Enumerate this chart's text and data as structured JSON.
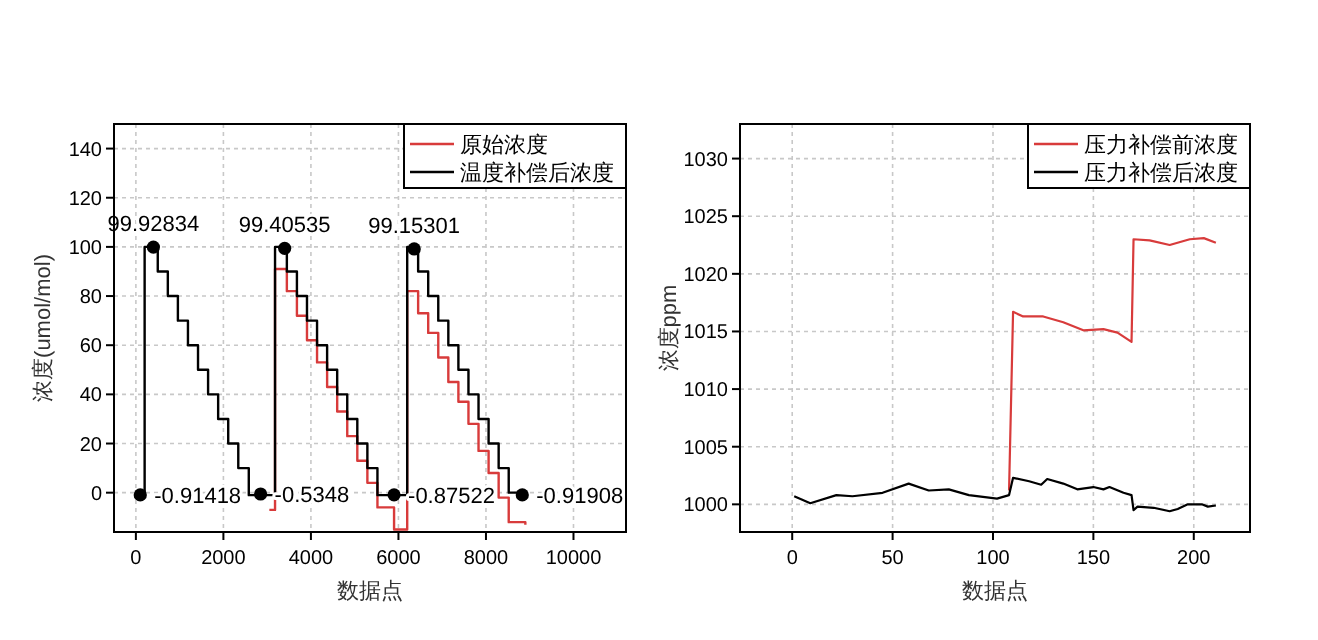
{
  "chart_data": [
    {
      "type": "step",
      "xlabel": "数据点",
      "ylabel": "浓度(umol/mol)",
      "xlim": [
        -500,
        11200
      ],
      "ylim": [
        -16,
        150
      ],
      "xticks": [
        0,
        2000,
        4000,
        6000,
        8000,
        10000
      ],
      "yticks": [
        0,
        20,
        40,
        60,
        80,
        100,
        120,
        140
      ],
      "grid": true,
      "legend": "top right",
      "series": [
        {
          "name": "原始浓度",
          "color": "#d83b3b",
          "x": [
            3050,
            3180,
            3450,
            3680,
            3910,
            4140,
            4370,
            4600,
            4830,
            5060,
            5290,
            5520,
            5900,
            6200,
            6450,
            6680,
            6910,
            7140,
            7370,
            7600,
            7830,
            8060,
            8290,
            8520,
            8900
          ],
          "values": [
            -7,
            91,
            82,
            72,
            62,
            53,
            43,
            33,
            23,
            13,
            4,
            -6,
            -15,
            82,
            73,
            65,
            55,
            45,
            37,
            28,
            17,
            8,
            -2,
            -12,
            -13
          ]
        },
        {
          "name": "温度补偿后浓度",
          "color": "#000000",
          "x": [
            0,
            200,
            500,
            730,
            960,
            1190,
            1420,
            1650,
            1880,
            2110,
            2340,
            2580,
            3180,
            3450,
            3680,
            3910,
            4140,
            4370,
            4600,
            4830,
            5060,
            5290,
            5520,
            6200,
            6450,
            6680,
            6910,
            7140,
            7370,
            7600,
            7830,
            8060,
            8290,
            8520,
            8900
          ],
          "values": [
            -1,
            100,
            90,
            80,
            70,
            60,
            50,
            40,
            30,
            20,
            10,
            -1,
            100,
            90,
            80,
            70,
            60,
            50,
            40,
            30,
            20,
            10,
            -1,
            100,
            90,
            80,
            70,
            60,
            50,
            40,
            30,
            20,
            10,
            0,
            -1
          ]
        },
        {
          "type": "scatter",
          "marker": "circle",
          "color": "#000000",
          "x": [
            100,
            400,
            2850,
            3400,
            5900,
            6360,
            8830
          ],
          "values": [
            -0.91418,
            99.92834,
            -0.5348,
            99.40535,
            -0.87522,
            99.15301,
            -0.91908
          ],
          "value_labels": [
            "-0.91418",
            "99.92834",
            "-0.5348",
            "99.40535",
            "-0.87522",
            "99.15301",
            "-0.91908"
          ]
        }
      ]
    },
    {
      "type": "line",
      "xlabel": "数据点",
      "ylabel": "浓度ppm",
      "xlim": [
        -26,
        228
      ],
      "ylim": [
        997.6,
        1033
      ],
      "xticks": [
        0,
        50,
        100,
        150,
        200
      ],
      "yticks": [
        1000,
        1005,
        1010,
        1015,
        1020,
        1025,
        1030
      ],
      "grid": true,
      "legend": "top right",
      "series": [
        {
          "name": "压力补偿前浓度",
          "color": "#d83b3b",
          "x": [
            108,
            110,
            115,
            125,
            135,
            145,
            155,
            162,
            169,
            170,
            178,
            188,
            198,
            205,
            211
          ],
          "values": [
            1001.2,
            1016.7,
            1016.3,
            1016.3,
            1015.8,
            1015.1,
            1015.2,
            1014.9,
            1014.1,
            1023,
            1022.9,
            1022.5,
            1023,
            1023.1,
            1022.7
          ]
        },
        {
          "name": "压力补偿后浓度",
          "color": "#000000",
          "x": [
            1,
            9,
            22,
            30,
            45,
            58,
            68,
            78,
            88,
            102,
            108,
            110,
            118,
            124,
            127,
            135,
            142,
            150,
            155,
            158,
            165,
            169,
            170,
            172,
            180,
            188,
            192,
            197,
            204,
            207,
            211
          ],
          "values": [
            1000.7,
            1000.1,
            1000.8,
            1000.7,
            1001,
            1001.8,
            1001.2,
            1001.3,
            1000.8,
            1000.5,
            1000.8,
            1002.3,
            1002,
            1001.7,
            1002.2,
            1001.8,
            1001.3,
            1001.5,
            1001.3,
            1001.5,
            1001,
            1000.8,
            999.5,
            999.8,
            999.7,
            999.4,
            999.6,
            1000,
            1000,
            999.8,
            999.9
          ]
        }
      ]
    }
  ]
}
